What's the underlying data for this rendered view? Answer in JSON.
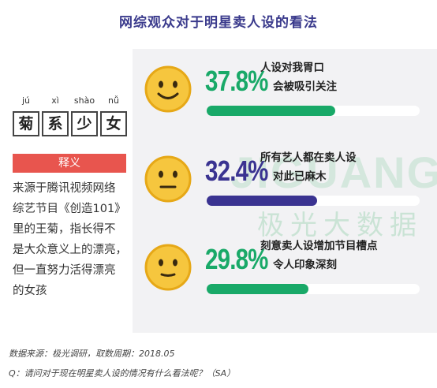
{
  "title": "网综观众对于明星卖人设的看法",
  "watermark": {
    "latin": "JIGUANG",
    "chinese": "极光大数据"
  },
  "term": {
    "pinyin": [
      "jú",
      "xì",
      "shào",
      "nǚ"
    ],
    "chars": [
      "菊",
      "系",
      "少",
      "女"
    ],
    "definition_header": "释义",
    "definition_lines": [
      "来源于腾讯视频网络",
      "综艺节目《创造101》",
      "里的王菊，指长得不",
      "是大众意义上的漂亮，",
      "但一直努力活得漂亮",
      "的女孩"
    ]
  },
  "chart_data": {
    "type": "bar",
    "title": "网综观众对于明星卖人设的看法",
    "unit": "%",
    "ylim": [
      0,
      100
    ],
    "categories": [
      "人设对我胃口 会被吸引关注",
      "所有艺人都在卖人设 对此已麻木",
      "刻意卖人设增加节目槽点 令人印象深刻"
    ],
    "values": [
      37.8,
      32.4,
      29.8
    ],
    "value_labels": [
      "37.8%",
      "32.4%",
      "29.8%"
    ],
    "label_lines": [
      [
        "人设对我胃口",
        "会被吸引关注"
      ],
      [
        "所有艺人都在卖人设",
        "对此已麻木"
      ],
      [
        "刻意卖人设增加节目槽点",
        "令人印象深刻"
      ]
    ],
    "faces": [
      "smile-face-icon",
      "neutral-face-icon",
      "flat-mouth-face-icon"
    ],
    "colors": [
      "#19a968",
      "#3a3391",
      "#19a968"
    ]
  },
  "colors": {
    "face_yellow": "#f6c63e",
    "face_stroke": "#e6a817",
    "accent_red": "#e8554e",
    "title_blue": "#3a3a8c"
  },
  "footer": {
    "source": "数据来源：极光调研，取数周期：2018.05",
    "question": "Q：请问对于现在明星卖人设的情况有什么看法呢？（SA）"
  }
}
